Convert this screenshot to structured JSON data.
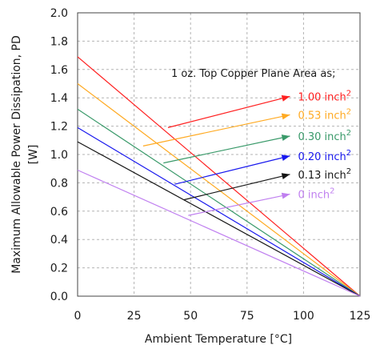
{
  "chart_data": {
    "type": "line",
    "xlabel": "Ambient Temperature [°C]",
    "ylabel_line1": "Maximum Allowable Power Dissipation, PD",
    "ylabel_line2": "[W]",
    "xlim": [
      0,
      125
    ],
    "ylim": [
      0,
      2.0
    ],
    "xticks": [
      "0",
      "25",
      "50",
      "75",
      "100",
      "125"
    ],
    "yticks": [
      "0.0",
      "0.2",
      "0.4",
      "0.6",
      "0.8",
      "1.0",
      "1.2",
      "1.4",
      "1.6",
      "1.8",
      "2.0"
    ],
    "grid": true,
    "legend_title": "1 oz. Top Copper Plane Area as;",
    "unit_base": "inch",
    "unit_exp": "2",
    "series": [
      {
        "name": "1.00",
        "color": "#ff2020",
        "x": [
          0,
          125
        ],
        "y": [
          1.69,
          0
        ]
      },
      {
        "name": "0.53",
        "color": "#ffaa22",
        "x": [
          0,
          125
        ],
        "y": [
          1.5,
          0
        ]
      },
      {
        "name": "0.30",
        "color": "#3a9a6a",
        "x": [
          0,
          125
        ],
        "y": [
          1.32,
          0
        ]
      },
      {
        "name": "0.20",
        "color": "#1818ee",
        "x": [
          0,
          125
        ],
        "y": [
          1.19,
          0
        ]
      },
      {
        "name": "0.13",
        "color": "#151515",
        "x": [
          0,
          125
        ],
        "y": [
          1.09,
          0
        ]
      },
      {
        "name": "0",
        "color": "#c080f0",
        "x": [
          0,
          125
        ],
        "y": [
          0.89,
          0
        ]
      }
    ],
    "callouts": [
      {
        "series": 0,
        "from": [
          40,
          1.19
        ],
        "to": [
          94,
          1.41
        ]
      },
      {
        "series": 1,
        "from": [
          29,
          1.06
        ],
        "to": [
          94,
          1.28
        ]
      },
      {
        "series": 2,
        "from": [
          38,
          0.94
        ],
        "to": [
          94,
          1.13
        ]
      },
      {
        "series": 3,
        "from": [
          43,
          0.79
        ],
        "to": [
          94,
          0.99
        ]
      },
      {
        "series": 4,
        "from": [
          47,
          0.68
        ],
        "to": [
          94,
          0.86
        ]
      },
      {
        "series": 5,
        "from": [
          49,
          0.57
        ],
        "to": [
          94,
          0.72
        ]
      }
    ]
  }
}
